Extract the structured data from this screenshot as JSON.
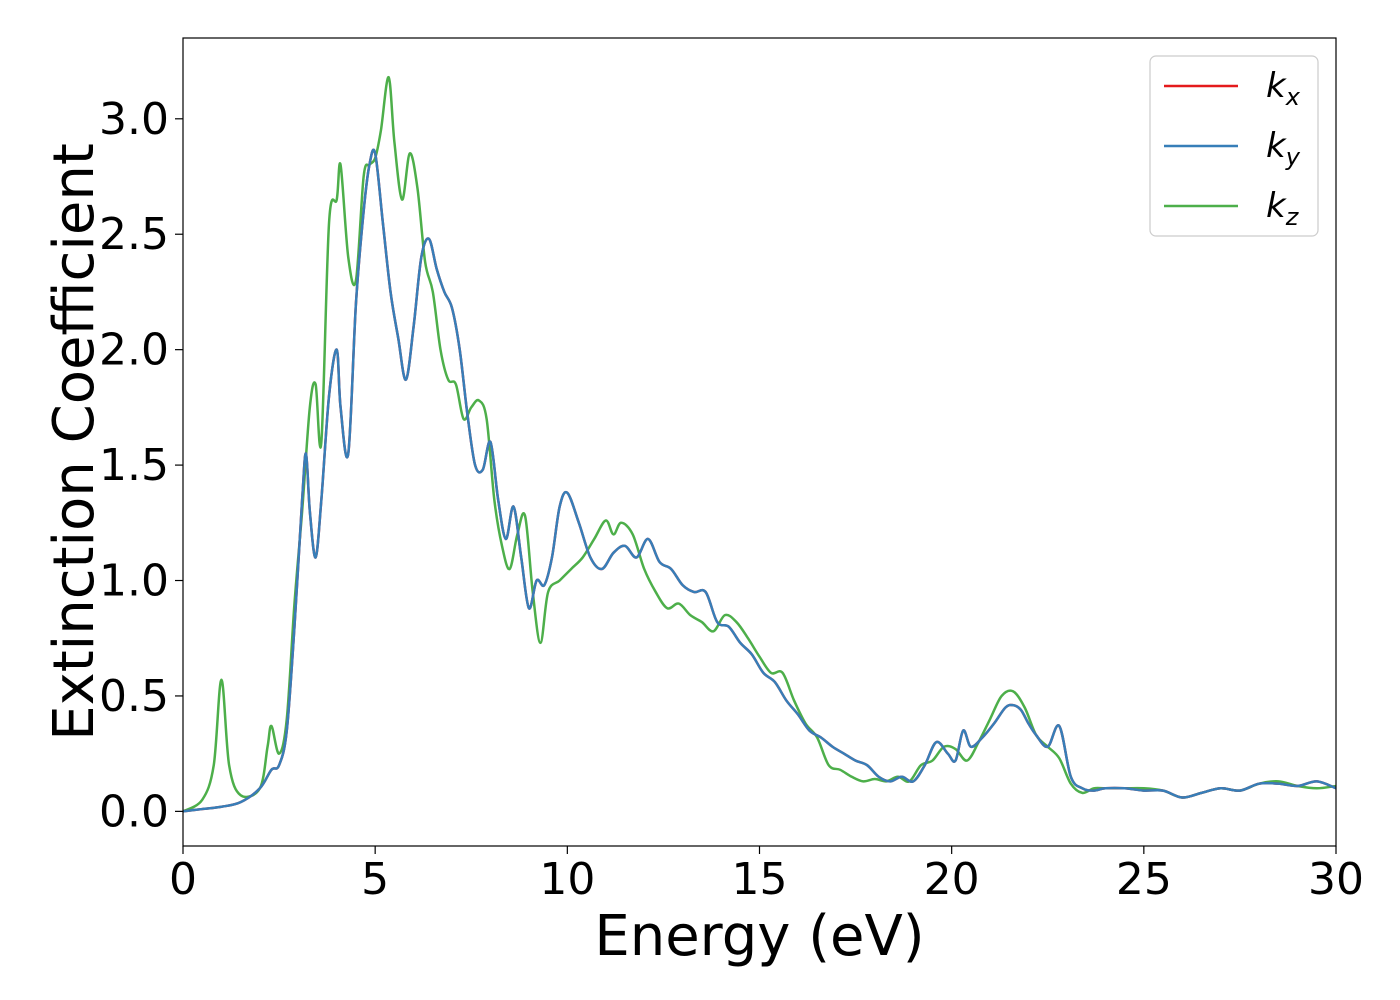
{
  "chart_data": {
    "type": "line",
    "title": "",
    "xlabel": "Energy (eV)",
    "ylabel": "Extinction Coefficient",
    "xlim": [
      0,
      30
    ],
    "ylim": [
      -0.15,
      3.35
    ],
    "xticks": [
      0,
      5,
      10,
      15,
      20,
      25,
      30
    ],
    "yticks": [
      0.0,
      0.5,
      1.0,
      1.5,
      2.0,
      2.5,
      3.0
    ],
    "xtick_labels": [
      "0",
      "5",
      "10",
      "15",
      "20",
      "25",
      "30"
    ],
    "ytick_labels": [
      "0.0",
      "0.5",
      "1.0",
      "1.5",
      "2.0",
      "2.5",
      "3.0"
    ],
    "grid": false,
    "legend_position": "top-right",
    "series": [
      {
        "name": "k_x",
        "label_base": "k",
        "label_sub": "x",
        "color": "#e41a1c",
        "x": [
          0,
          0.5,
          1.0,
          1.5,
          2.0,
          2.3,
          2.5,
          2.7,
          2.9,
          3.1,
          3.2,
          3.3,
          3.45,
          3.6,
          3.8,
          4.0,
          4.1,
          4.3,
          4.5,
          4.7,
          4.85,
          5.0,
          5.2,
          5.4,
          5.6,
          5.8,
          6.0,
          6.2,
          6.4,
          6.6,
          6.8,
          7.0,
          7.2,
          7.4,
          7.6,
          7.8,
          8.0,
          8.2,
          8.4,
          8.6,
          8.8,
          9.0,
          9.2,
          9.4,
          9.6,
          9.8,
          10.0,
          10.3,
          10.6,
          10.9,
          11.2,
          11.5,
          11.8,
          12.1,
          12.4,
          12.7,
          13.0,
          13.3,
          13.6,
          13.9,
          14.2,
          14.5,
          14.8,
          15.1,
          15.4,
          15.7,
          16.0,
          16.3,
          16.6,
          16.9,
          17.2,
          17.5,
          17.8,
          18.1,
          18.4,
          18.7,
          19.0,
          19.3,
          19.6,
          19.9,
          20.1,
          20.3,
          20.5,
          20.8,
          21.1,
          21.4,
          21.6,
          21.8,
          22.0,
          22.2,
          22.5,
          22.8,
          23.1,
          23.4,
          23.7,
          24.0,
          24.5,
          25.0,
          25.5,
          26.0,
          26.5,
          27.0,
          27.5,
          28.0,
          28.5,
          29.0,
          29.5,
          30.0
        ],
        "y": [
          0.0,
          0.01,
          0.02,
          0.04,
          0.1,
          0.18,
          0.2,
          0.35,
          0.8,
          1.35,
          1.55,
          1.3,
          1.1,
          1.35,
          1.8,
          2.0,
          1.75,
          1.55,
          2.2,
          2.6,
          2.8,
          2.85,
          2.55,
          2.25,
          2.05,
          1.87,
          2.1,
          2.4,
          2.48,
          2.35,
          2.25,
          2.18,
          2.0,
          1.72,
          1.5,
          1.48,
          1.6,
          1.35,
          1.18,
          1.32,
          1.1,
          0.88,
          1.0,
          0.98,
          1.1,
          1.32,
          1.38,
          1.25,
          1.1,
          1.05,
          1.12,
          1.15,
          1.1,
          1.18,
          1.08,
          1.05,
          0.98,
          0.95,
          0.95,
          0.82,
          0.8,
          0.73,
          0.68,
          0.6,
          0.56,
          0.48,
          0.42,
          0.35,
          0.32,
          0.28,
          0.25,
          0.22,
          0.2,
          0.15,
          0.13,
          0.15,
          0.13,
          0.2,
          0.3,
          0.25,
          0.22,
          0.35,
          0.28,
          0.32,
          0.38,
          0.45,
          0.46,
          0.44,
          0.38,
          0.33,
          0.28,
          0.37,
          0.15,
          0.1,
          0.09,
          0.1,
          0.1,
          0.09,
          0.09,
          0.06,
          0.08,
          0.1,
          0.09,
          0.12,
          0.12,
          0.11,
          0.13,
          0.1
        ]
      },
      {
        "name": "k_y",
        "label_base": "k",
        "label_sub": "y",
        "color": "#377eb8",
        "x": [
          0,
          0.5,
          1.0,
          1.5,
          2.0,
          2.3,
          2.5,
          2.7,
          2.9,
          3.1,
          3.2,
          3.3,
          3.45,
          3.6,
          3.8,
          4.0,
          4.1,
          4.3,
          4.5,
          4.7,
          4.85,
          5.0,
          5.2,
          5.4,
          5.6,
          5.8,
          6.0,
          6.2,
          6.4,
          6.6,
          6.8,
          7.0,
          7.2,
          7.4,
          7.6,
          7.8,
          8.0,
          8.2,
          8.4,
          8.6,
          8.8,
          9.0,
          9.2,
          9.4,
          9.6,
          9.8,
          10.0,
          10.3,
          10.6,
          10.9,
          11.2,
          11.5,
          11.8,
          12.1,
          12.4,
          12.7,
          13.0,
          13.3,
          13.6,
          13.9,
          14.2,
          14.5,
          14.8,
          15.1,
          15.4,
          15.7,
          16.0,
          16.3,
          16.6,
          16.9,
          17.2,
          17.5,
          17.8,
          18.1,
          18.4,
          18.7,
          19.0,
          19.3,
          19.6,
          19.9,
          20.1,
          20.3,
          20.5,
          20.8,
          21.1,
          21.4,
          21.6,
          21.8,
          22.0,
          22.2,
          22.5,
          22.8,
          23.1,
          23.4,
          23.7,
          24.0,
          24.5,
          25.0,
          25.5,
          26.0,
          26.5,
          27.0,
          27.5,
          28.0,
          28.5,
          29.0,
          29.5,
          30.0
        ],
        "y": [
          0.0,
          0.01,
          0.02,
          0.04,
          0.1,
          0.18,
          0.2,
          0.35,
          0.8,
          1.35,
          1.55,
          1.3,
          1.1,
          1.35,
          1.8,
          2.0,
          1.75,
          1.55,
          2.2,
          2.6,
          2.8,
          2.85,
          2.55,
          2.25,
          2.05,
          1.87,
          2.1,
          2.4,
          2.48,
          2.35,
          2.25,
          2.18,
          2.0,
          1.72,
          1.5,
          1.48,
          1.6,
          1.35,
          1.18,
          1.32,
          1.1,
          0.88,
          1.0,
          0.98,
          1.1,
          1.32,
          1.38,
          1.25,
          1.1,
          1.05,
          1.12,
          1.15,
          1.1,
          1.18,
          1.08,
          1.05,
          0.98,
          0.95,
          0.95,
          0.82,
          0.8,
          0.73,
          0.68,
          0.6,
          0.56,
          0.48,
          0.42,
          0.35,
          0.32,
          0.28,
          0.25,
          0.22,
          0.2,
          0.15,
          0.13,
          0.15,
          0.13,
          0.2,
          0.3,
          0.25,
          0.22,
          0.35,
          0.28,
          0.32,
          0.38,
          0.45,
          0.46,
          0.44,
          0.38,
          0.33,
          0.28,
          0.37,
          0.15,
          0.1,
          0.09,
          0.1,
          0.1,
          0.09,
          0.09,
          0.06,
          0.08,
          0.1,
          0.09,
          0.12,
          0.12,
          0.11,
          0.13,
          0.1
        ]
      },
      {
        "name": "k_z",
        "label_base": "k",
        "label_sub": "z",
        "color": "#4daf4a",
        "x": [
          0,
          0.5,
          0.8,
          1.0,
          1.2,
          1.5,
          2.0,
          2.2,
          2.3,
          2.5,
          2.7,
          2.9,
          3.1,
          3.3,
          3.45,
          3.6,
          3.8,
          4.0,
          4.1,
          4.3,
          4.5,
          4.7,
          4.85,
          5.0,
          5.15,
          5.35,
          5.5,
          5.7,
          5.9,
          6.1,
          6.3,
          6.5,
          6.7,
          6.9,
          7.1,
          7.3,
          7.5,
          7.7,
          7.9,
          8.1,
          8.3,
          8.5,
          8.7,
          8.9,
          9.1,
          9.3,
          9.5,
          9.8,
          10.1,
          10.4,
          10.7,
          11.0,
          11.2,
          11.4,
          11.7,
          12.0,
          12.3,
          12.6,
          12.9,
          13.2,
          13.5,
          13.8,
          14.1,
          14.4,
          14.7,
          15.0,
          15.3,
          15.6,
          15.9,
          16.2,
          16.5,
          16.8,
          17.1,
          17.4,
          17.7,
          18.0,
          18.3,
          18.6,
          18.9,
          19.2,
          19.5,
          19.8,
          20.1,
          20.4,
          20.7,
          21.0,
          21.3,
          21.6,
          21.9,
          22.2,
          22.5,
          22.8,
          23.1,
          23.4,
          23.7,
          24.0,
          24.5,
          25.0,
          25.5,
          26.0,
          26.5,
          27.0,
          27.5,
          28.0,
          28.5,
          29.0,
          29.5,
          30.0
        ],
        "y": [
          0.0,
          0.05,
          0.2,
          0.57,
          0.2,
          0.07,
          0.1,
          0.28,
          0.37,
          0.25,
          0.4,
          0.9,
          1.3,
          1.75,
          1.85,
          1.6,
          2.55,
          2.65,
          2.8,
          2.4,
          2.3,
          2.75,
          2.8,
          2.83,
          2.95,
          3.18,
          2.9,
          2.65,
          2.85,
          2.7,
          2.38,
          2.25,
          2.0,
          1.87,
          1.85,
          1.7,
          1.75,
          1.78,
          1.7,
          1.35,
          1.15,
          1.05,
          1.2,
          1.28,
          0.95,
          0.73,
          0.95,
          1.0,
          1.05,
          1.1,
          1.18,
          1.26,
          1.2,
          1.25,
          1.2,
          1.05,
          0.95,
          0.88,
          0.9,
          0.85,
          0.82,
          0.78,
          0.85,
          0.82,
          0.75,
          0.67,
          0.6,
          0.6,
          0.48,
          0.38,
          0.32,
          0.2,
          0.18,
          0.15,
          0.13,
          0.14,
          0.13,
          0.15,
          0.13,
          0.2,
          0.22,
          0.28,
          0.27,
          0.22,
          0.3,
          0.4,
          0.5,
          0.52,
          0.45,
          0.33,
          0.28,
          0.23,
          0.12,
          0.08,
          0.1,
          0.1,
          0.1,
          0.1,
          0.09,
          0.06,
          0.08,
          0.1,
          0.09,
          0.12,
          0.13,
          0.11,
          0.1,
          0.11
        ]
      }
    ]
  }
}
